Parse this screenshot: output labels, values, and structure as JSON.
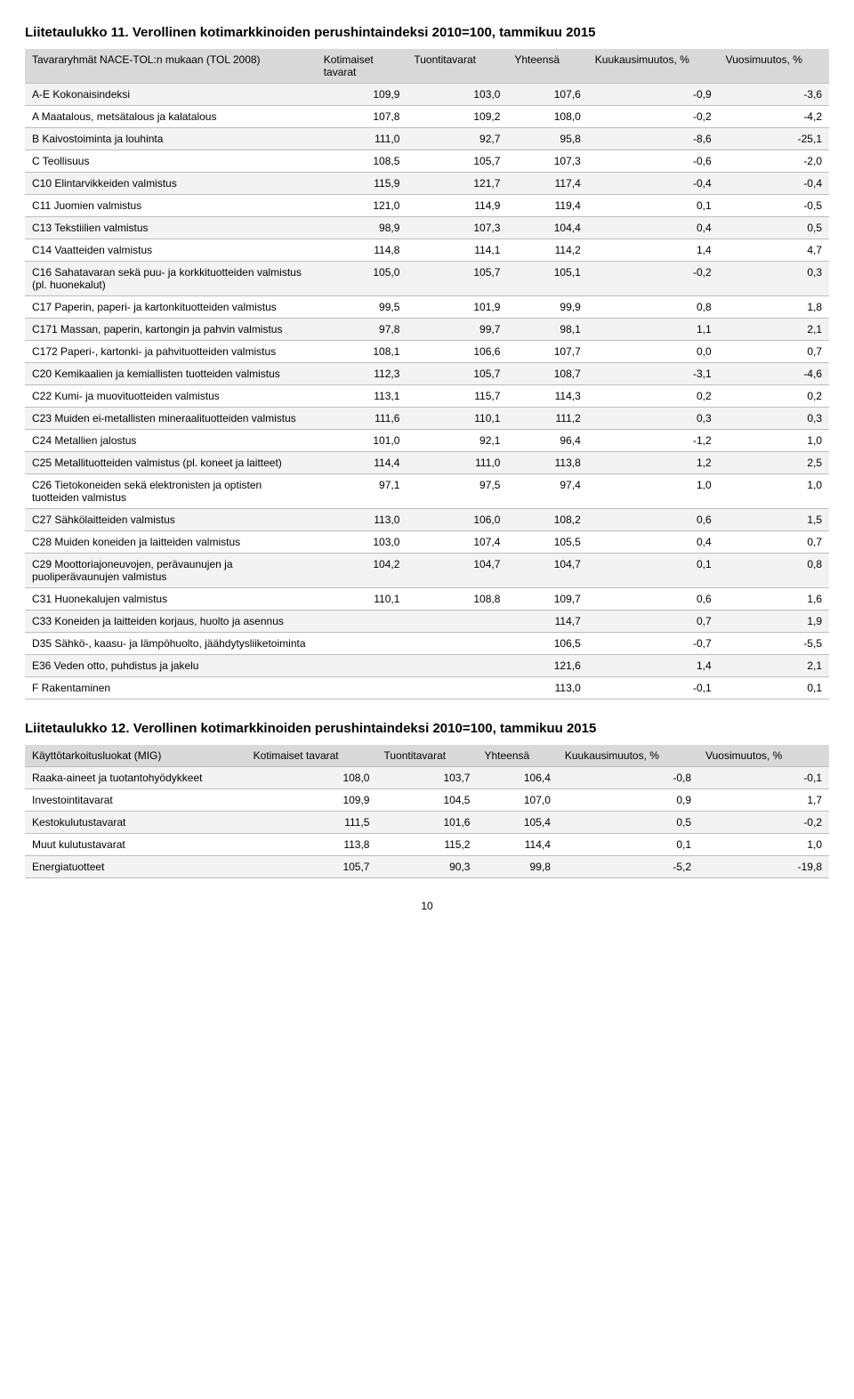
{
  "table1": {
    "title": "Liitetaulukko 11. Verollinen kotimarkkinoiden perushintaindeksi 2010=100, tammikuu 2015",
    "headers": [
      "Tavararyhmät NACE-TOL:n mukaan (TOL 2008)",
      "Kotimaiset tavarat",
      "Tuontitavarat",
      "Yhteensä",
      "Kuukausimuutos, %",
      "Vuosimuutos, %"
    ],
    "rows": [
      {
        "label": "A-E Kokonaisindeksi",
        "v": [
          "109,9",
          "103,0",
          "107,6",
          "-0,9",
          "-3,6"
        ]
      },
      {
        "label": "A Maatalous, metsätalous ja kalatalous",
        "v": [
          "107,8",
          "109,2",
          "108,0",
          "-0,2",
          "-4,2"
        ]
      },
      {
        "label": "B Kaivostoiminta ja louhinta",
        "v": [
          "111,0",
          "92,7",
          "95,8",
          "-8,6",
          "-25,1"
        ]
      },
      {
        "label": "C Teollisuus",
        "v": [
          "108,5",
          "105,7",
          "107,3",
          "-0,6",
          "-2,0"
        ]
      },
      {
        "label": "C10 Elintarvikkeiden valmistus",
        "v": [
          "115,9",
          "121,7",
          "117,4",
          "-0,4",
          "-0,4"
        ]
      },
      {
        "label": "C11 Juomien valmistus",
        "v": [
          "121,0",
          "114,9",
          "119,4",
          "0,1",
          "-0,5"
        ]
      },
      {
        "label": "C13 Tekstiilien valmistus",
        "v": [
          "98,9",
          "107,3",
          "104,4",
          "0,4",
          "0,5"
        ]
      },
      {
        "label": "C14 Vaatteiden valmistus",
        "v": [
          "114,8",
          "114,1",
          "114,2",
          "1,4",
          "4,7"
        ]
      },
      {
        "label": "C16 Sahatavaran sekä puu- ja korkkituotteiden valmistus (pl. huonekalut)",
        "v": [
          "105,0",
          "105,7",
          "105,1",
          "-0,2",
          "0,3"
        ]
      },
      {
        "label": "C17 Paperin, paperi- ja kartonkituotteiden valmistus",
        "v": [
          "99,5",
          "101,9",
          "99,9",
          "0,8",
          "1,8"
        ]
      },
      {
        "label": "C171 Massan, paperin, kartongin ja pahvin valmistus",
        "v": [
          "97,8",
          "99,7",
          "98,1",
          "1,1",
          "2,1"
        ]
      },
      {
        "label": "C172 Paperi-, kartonki- ja pahvituotteiden valmistus",
        "v": [
          "108,1",
          "106,6",
          "107,7",
          "0,0",
          "0,7"
        ]
      },
      {
        "label": "C20 Kemikaalien ja kemiallisten tuotteiden valmistus",
        "v": [
          "112,3",
          "105,7",
          "108,7",
          "-3,1",
          "-4,6"
        ]
      },
      {
        "label": "C22 Kumi- ja muovituotteiden valmistus",
        "v": [
          "113,1",
          "115,7",
          "114,3",
          "0,2",
          "0,2"
        ]
      },
      {
        "label": "C23 Muiden ei-metallisten mineraalituotteiden valmistus",
        "v": [
          "111,6",
          "110,1",
          "111,2",
          "0,3",
          "0,3"
        ]
      },
      {
        "label": "C24 Metallien jalostus",
        "v": [
          "101,0",
          "92,1",
          "96,4",
          "-1,2",
          "1,0"
        ]
      },
      {
        "label": "C25 Metallituotteiden valmistus (pl. koneet ja laitteet)",
        "v": [
          "114,4",
          "111,0",
          "113,8",
          "1,2",
          "2,5"
        ]
      },
      {
        "label": "C26 Tietokoneiden sekä elektronisten ja optisten tuotteiden valmistus",
        "v": [
          "97,1",
          "97,5",
          "97,4",
          "1,0",
          "1,0"
        ]
      },
      {
        "label": "C27 Sähkölaitteiden valmistus",
        "v": [
          "113,0",
          "106,0",
          "108,2",
          "0,6",
          "1,5"
        ]
      },
      {
        "label": "C28 Muiden koneiden ja laitteiden valmistus",
        "v": [
          "103,0",
          "107,4",
          "105,5",
          "0,4",
          "0,7"
        ]
      },
      {
        "label": "C29 Moottoriajoneuvojen, perävaunujen ja puoliperävaunujen valmistus",
        "v": [
          "104,2",
          "104,7",
          "104,7",
          "0,1",
          "0,8"
        ]
      },
      {
        "label": "C31 Huonekalujen valmistus",
        "v": [
          "110,1",
          "108,8",
          "109,7",
          "0,6",
          "1,6"
        ]
      },
      {
        "label": "C33 Koneiden ja laitteiden korjaus, huolto ja asennus",
        "v": [
          "",
          "",
          "114,7",
          "0,7",
          "1,9"
        ]
      },
      {
        "label": "D35 Sähkö-, kaasu- ja lämpöhuolto, jäähdytysliiketoiminta",
        "v": [
          "",
          "",
          "106,5",
          "-0,7",
          "-5,5"
        ]
      },
      {
        "label": "E36 Veden otto, puhdistus ja jakelu",
        "v": [
          "",
          "",
          "121,6",
          "1,4",
          "2,1"
        ]
      },
      {
        "label": "F Rakentaminen",
        "v": [
          "",
          "",
          "113,0",
          "-0,1",
          "0,1"
        ]
      }
    ]
  },
  "table2": {
    "title": "Liitetaulukko 12. Verollinen kotimarkkinoiden perushintaindeksi 2010=100, tammikuu 2015",
    "headers": [
      "Käyttötarkoitusluokat (MIG)",
      "Kotimaiset tavarat",
      "Tuontitavarat",
      "Yhteensä",
      "Kuukausimuutos, %",
      "Vuosimuutos, %"
    ],
    "rows": [
      {
        "label": "Raaka-aineet ja tuotantohyödykkeet",
        "v": [
          "108,0",
          "103,7",
          "106,4",
          "-0,8",
          "-0,1"
        ]
      },
      {
        "label": "Investointitavarat",
        "v": [
          "109,9",
          "104,5",
          "107,0",
          "0,9",
          "1,7"
        ]
      },
      {
        "label": "Kestokulutustavarat",
        "v": [
          "111,5",
          "101,6",
          "105,4",
          "0,5",
          "-0,2"
        ]
      },
      {
        "label": "Muut kulutustavarat",
        "v": [
          "113,8",
          "115,2",
          "114,4",
          "0,1",
          "1,0"
        ]
      },
      {
        "label": "Energiatuotteet",
        "v": [
          "105,7",
          "90,3",
          "99,8",
          "-5,2",
          "-19,8"
        ]
      }
    ]
  },
  "page_number": "10"
}
